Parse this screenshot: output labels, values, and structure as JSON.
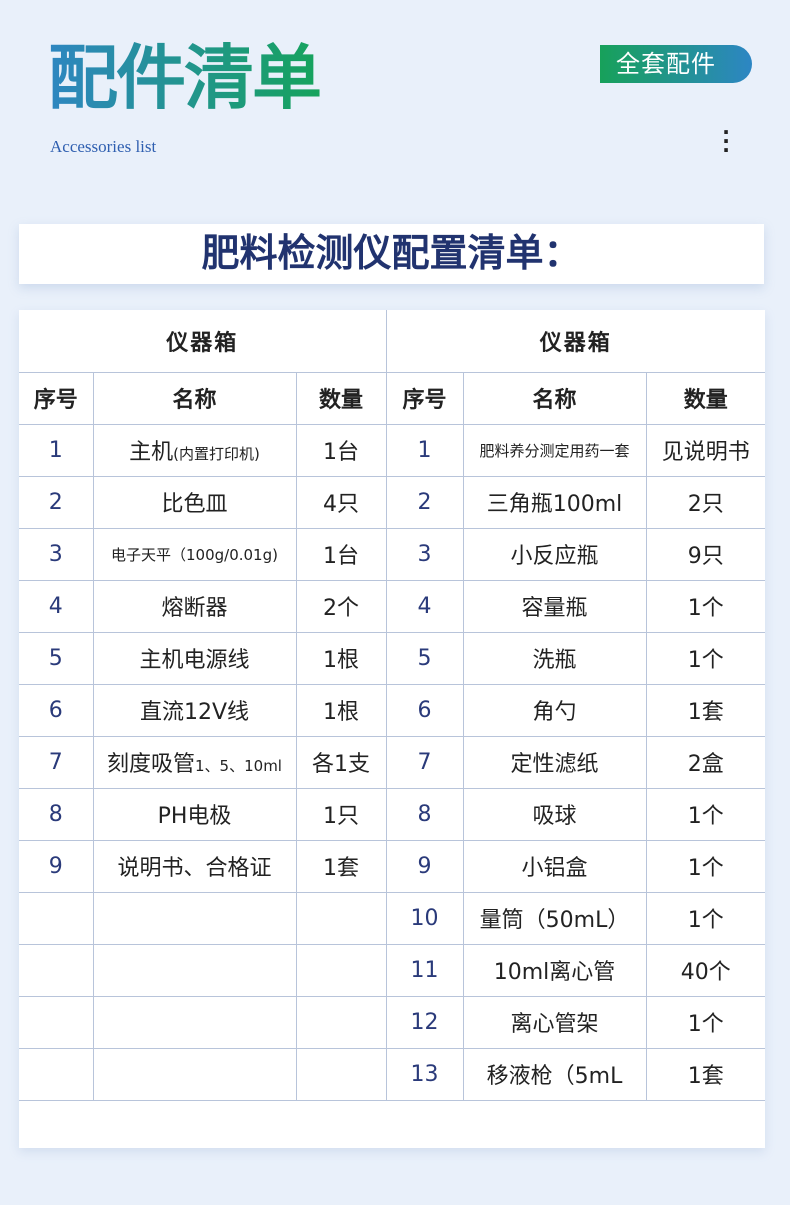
{
  "header": {
    "title": "配件清单",
    "subtitle": "Accessories list",
    "badge": "全套配件",
    "menu_icon": "more-vertical-icon"
  },
  "banner": {
    "title": "肥料检测仪配置清单："
  },
  "table": {
    "left_group": "仪器箱",
    "right_group": "仪器箱",
    "columns": [
      "序号",
      "名称",
      "数量"
    ],
    "left_rows": [
      {
        "no": "1",
        "name": "主机",
        "note": "(内置打印机)",
        "qty": "1台"
      },
      {
        "no": "2",
        "name": "比色皿",
        "note": "",
        "qty": "4只"
      },
      {
        "no": "3",
        "name": "电子天平（100g/0.01g)",
        "note": "",
        "qty": "1台",
        "small": true
      },
      {
        "no": "4",
        "name": "熔断器",
        "note": "",
        "qty": "2个"
      },
      {
        "no": "5",
        "name": "主机电源线",
        "note": "",
        "qty": "1根"
      },
      {
        "no": "6",
        "name": "直流12V线",
        "note": "",
        "qty": "1根"
      },
      {
        "no": "7",
        "name": "刻度吸管",
        "note": "1、5、10ml",
        "qty": "各1支"
      },
      {
        "no": "8",
        "name": "PH电极",
        "note": "",
        "qty": "1只"
      },
      {
        "no": "9",
        "name": "说明书、合格证",
        "note": "",
        "qty": "1套"
      }
    ],
    "right_rows": [
      {
        "no": "1",
        "name": "肥料养分测定用药一套",
        "qty": "见说明书",
        "small": true
      },
      {
        "no": "2",
        "name": "三角瓶100ml",
        "qty": "2只"
      },
      {
        "no": "3",
        "name": "小反应瓶",
        "qty": "9只"
      },
      {
        "no": "4",
        "name": "容量瓶",
        "qty": "1个"
      },
      {
        "no": "5",
        "name": "洗瓶",
        "qty": "1个"
      },
      {
        "no": "6",
        "name": "角勺",
        "qty": "1套"
      },
      {
        "no": "7",
        "name": "定性滤纸",
        "qty": "2盒"
      },
      {
        "no": "8",
        "name": "吸球",
        "qty": "1个"
      },
      {
        "no": "9",
        "name": "小铝盒",
        "qty": "1个"
      },
      {
        "no": "10",
        "name": "量筒（50mL）",
        "qty": "1个"
      },
      {
        "no": "11",
        "name": "10ml离心管",
        "qty": "40个"
      },
      {
        "no": "12",
        "name": "离心管架",
        "qty": "1个"
      },
      {
        "no": "13",
        "name": "移液枪（5mL",
        "qty": "1套"
      }
    ]
  }
}
